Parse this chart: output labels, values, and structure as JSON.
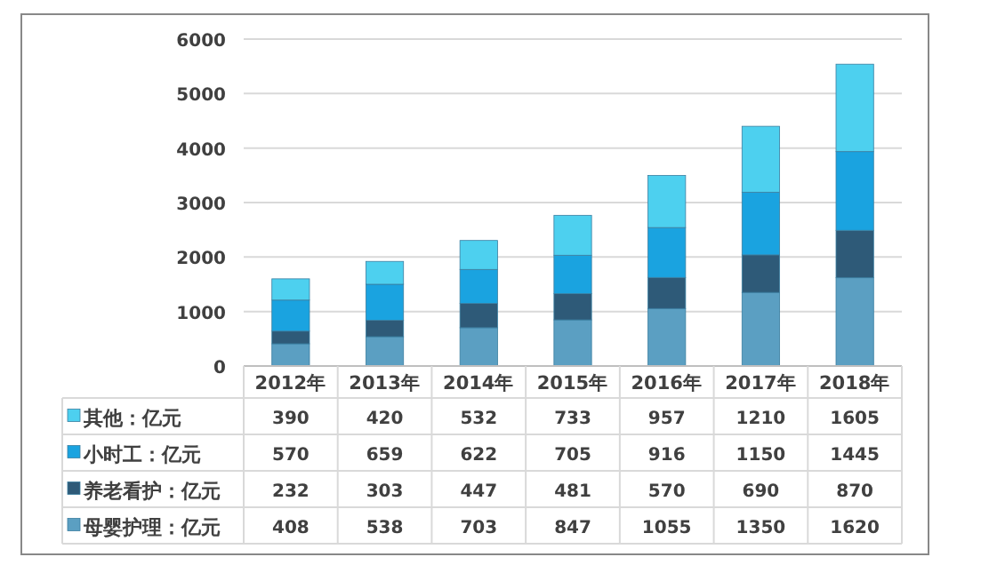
{
  "chart_data": {
    "type": "bar",
    "stacked": true,
    "categories": [
      "2012年",
      "2013年",
      "2014年",
      "2015年",
      "2016年",
      "2017年",
      "2018年"
    ],
    "series": [
      {
        "name": "母婴护理：亿元",
        "color": "#5b9fc2",
        "values": [
          408,
          538,
          703,
          847,
          1055,
          1350,
          1620
        ]
      },
      {
        "name": "养老看护：亿元",
        "color": "#2e5a78",
        "values": [
          232,
          303,
          447,
          481,
          570,
          690,
          870
        ]
      },
      {
        "name": "小时工：亿元",
        "color": "#1aa3e0",
        "values": [
          570,
          659,
          622,
          705,
          916,
          1150,
          1445
        ]
      },
      {
        "name": "其他：亿元",
        "color": "#4dd0ef",
        "values": [
          390,
          420,
          532,
          733,
          957,
          1210,
          1605
        ]
      }
    ],
    "ylim": [
      0,
      6000
    ],
    "yticks": [
      0,
      1000,
      2000,
      3000,
      4000,
      5000,
      6000
    ],
    "grid": "y",
    "legend": "bottom",
    "data_labels": true
  }
}
